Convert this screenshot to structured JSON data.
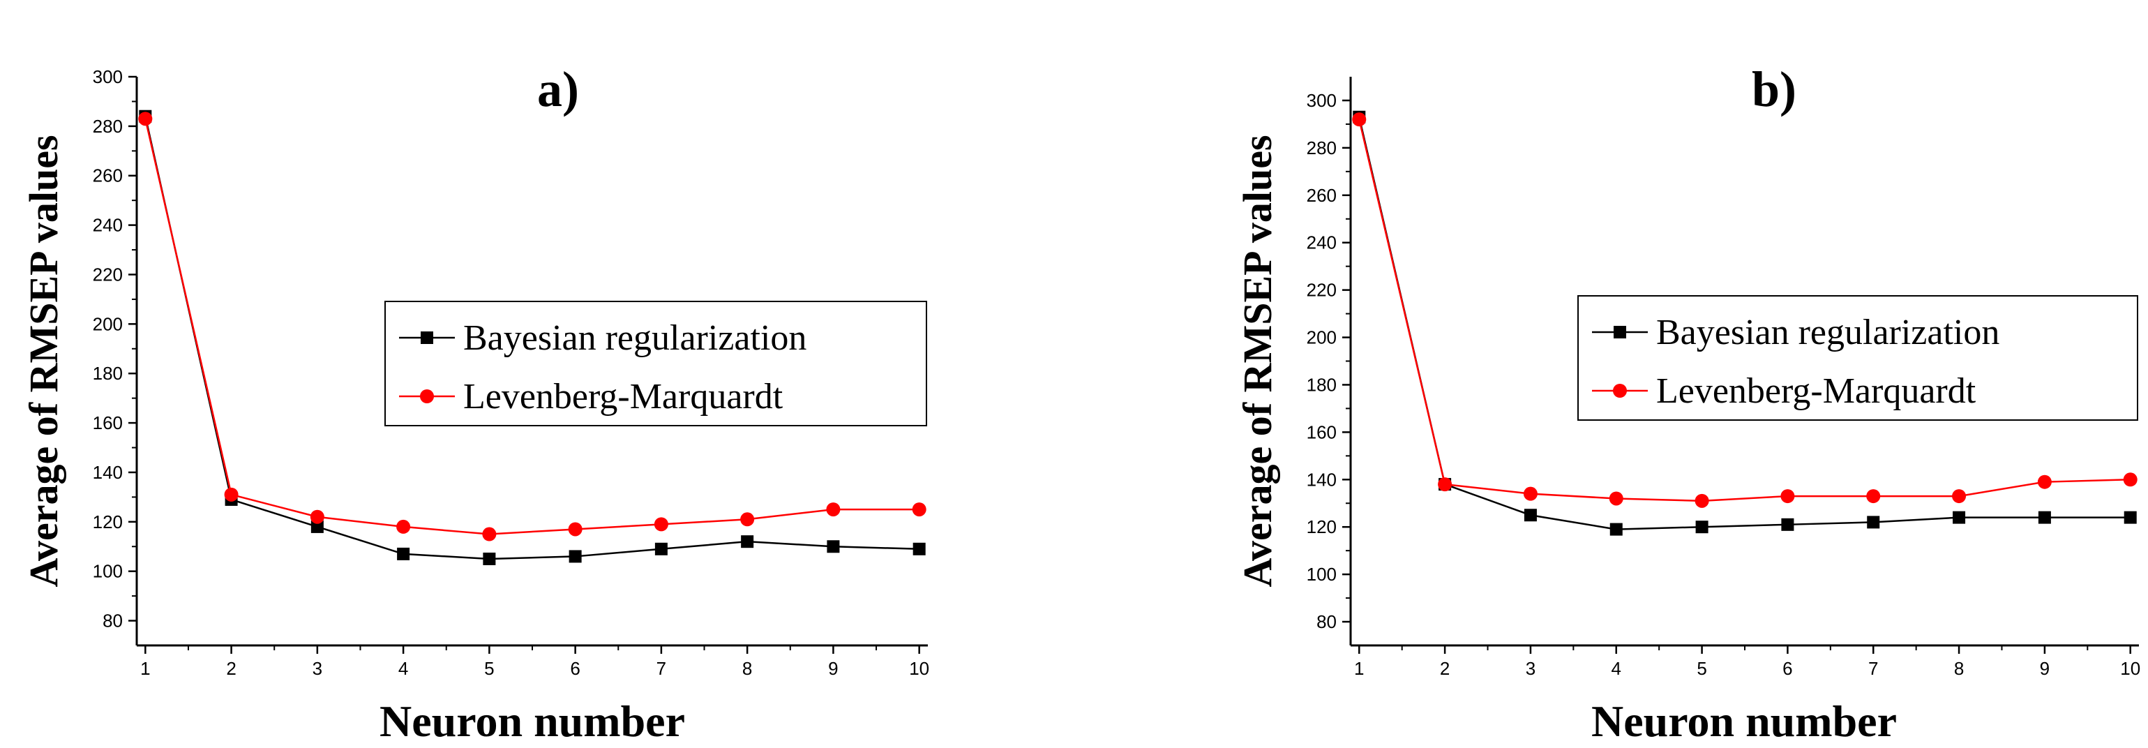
{
  "chart_data": [
    {
      "type": "line",
      "panel": "a)",
      "xlabel": "Neuron number",
      "ylabel": "Average of RMSEP values",
      "x": [
        1,
        2,
        3,
        4,
        5,
        6,
        7,
        8,
        9,
        10
      ],
      "x_ticks": [
        "1",
        "2",
        "3",
        "4",
        "5",
        "6",
        "7",
        "8",
        "9",
        "10"
      ],
      "xlim": [
        0.9,
        10.1
      ],
      "ylim": [
        70,
        300
      ],
      "y_ticks": [
        80,
        100,
        120,
        140,
        160,
        180,
        200,
        220,
        240,
        260,
        280,
        300
      ],
      "legend_position": "center-right",
      "series": [
        {
          "name": "Bayesian regularization",
          "color": "#000000",
          "marker": "square",
          "values": [
            284,
            129,
            118,
            107,
            105,
            106,
            109,
            112,
            110,
            109
          ]
        },
        {
          "name": "Levenberg-Marquardt",
          "color": "#ff0000",
          "marker": "circle",
          "values": [
            283,
            131,
            122,
            118,
            115,
            117,
            119,
            121,
            125,
            125
          ]
        }
      ]
    },
    {
      "type": "line",
      "panel": "b)",
      "xlabel": "Neuron number",
      "ylabel": "Average of RMSEP values",
      "x": [
        1,
        2,
        3,
        4,
        5,
        6,
        7,
        8,
        9,
        10
      ],
      "x_ticks": [
        "1",
        "2",
        "3",
        "4",
        "5",
        "6",
        "7",
        "8",
        "9",
        "10"
      ],
      "xlim": [
        0.9,
        10.1
      ],
      "ylim": [
        70,
        310
      ],
      "y_ticks": [
        80,
        100,
        120,
        140,
        160,
        180,
        200,
        220,
        240,
        260,
        280,
        300
      ],
      "legend_position": "center-right",
      "series": [
        {
          "name": "Bayesian regularization",
          "color": "#000000",
          "marker": "square",
          "values": [
            293,
            138,
            125,
            119,
            120,
            121,
            122,
            124,
            124,
            124
          ]
        },
        {
          "name": "Levenberg-Marquardt",
          "color": "#ff0000",
          "marker": "circle",
          "values": [
            292,
            138,
            134,
            132,
            131,
            133,
            133,
            133,
            139,
            140
          ]
        }
      ]
    }
  ]
}
